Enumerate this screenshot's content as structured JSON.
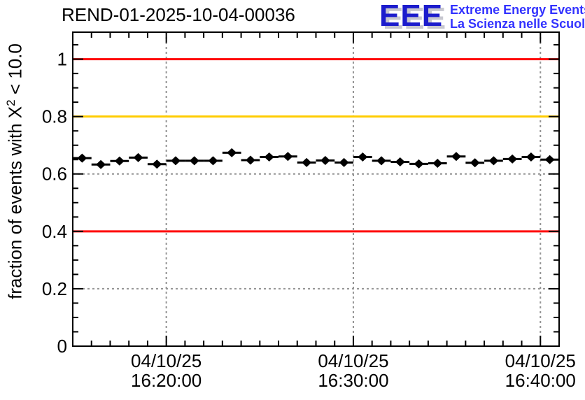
{
  "header": {
    "run_title": "REND-01-2025-10-04-00036",
    "logo": {
      "acronym": "EEE",
      "line1": "Extreme Energy Events",
      "line2": "La Scienza nelle Scuole",
      "acronym_color": "#1c1ccd",
      "shadow_color": "#c7c7cf",
      "text_color": "#3232ff"
    }
  },
  "chart_data": {
    "type": "scatter",
    "title": "REND-01-2025-10-04-00036",
    "xlabel": "",
    "ylabel": "fraction of events with X^2 < 10.0",
    "ylabel_parts": {
      "prefix": "fraction of events with X",
      "sup": "2",
      "suffix": " < 10.0"
    },
    "grid": true,
    "legend_position": "none",
    "ylim": [
      0,
      1.094
    ],
    "xlim": [
      "16:15:00",
      "16:41:00"
    ],
    "y_major_ticks": [
      0,
      0.2,
      0.4,
      0.6,
      0.8,
      1.0
    ],
    "y_tick_labels": [
      "0",
      "0.2",
      "0.4",
      "0.6",
      "0.8",
      "1"
    ],
    "y_minor_step": 0.05,
    "x_minor_step_seconds": 60,
    "x_major_ticks": [
      {
        "date": "04/10/25",
        "time": "16:20:00"
      },
      {
        "date": "04/10/25",
        "time": "16:30:00"
      },
      {
        "date": "04/10/25",
        "time": "16:40:00"
      }
    ],
    "reference_lines": [
      {
        "y": 1.0,
        "color": "#ff0000"
      },
      {
        "y": 0.8,
        "color": "#ffcc00"
      },
      {
        "y": 0.4,
        "color": "#ff0000"
      }
    ],
    "grid_color": "#949494",
    "marker_color": "#000000",
    "series": [
      {
        "name": "fraction of events with chi2 < 10.0",
        "marker": "diamond",
        "x_error_seconds": 30,
        "points": [
          {
            "t": "16:15:30",
            "v": 0.655
          },
          {
            "t": "16:16:30",
            "v": 0.633
          },
          {
            "t": "16:17:30",
            "v": 0.645
          },
          {
            "t": "16:18:30",
            "v": 0.657
          },
          {
            "t": "16:19:30",
            "v": 0.634
          },
          {
            "t": "16:20:30",
            "v": 0.646
          },
          {
            "t": "16:21:30",
            "v": 0.646
          },
          {
            "t": "16:22:30",
            "v": 0.646
          },
          {
            "t": "16:23:30",
            "v": 0.674
          },
          {
            "t": "16:24:30",
            "v": 0.648
          },
          {
            "t": "16:25:30",
            "v": 0.659
          },
          {
            "t": "16:26:30",
            "v": 0.661
          },
          {
            "t": "16:27:30",
            "v": 0.64
          },
          {
            "t": "16:28:30",
            "v": 0.647
          },
          {
            "t": "16:29:30",
            "v": 0.64
          },
          {
            "t": "16:30:30",
            "v": 0.659
          },
          {
            "t": "16:31:30",
            "v": 0.646
          },
          {
            "t": "16:32:30",
            "v": 0.642
          },
          {
            "t": "16:33:30",
            "v": 0.635
          },
          {
            "t": "16:34:30",
            "v": 0.637
          },
          {
            "t": "16:35:30",
            "v": 0.661
          },
          {
            "t": "16:36:30",
            "v": 0.639
          },
          {
            "t": "16:37:30",
            "v": 0.646
          },
          {
            "t": "16:38:30",
            "v": 0.652
          },
          {
            "t": "16:39:30",
            "v": 0.659
          },
          {
            "t": "16:40:30",
            "v": 0.65
          }
        ]
      }
    ]
  }
}
